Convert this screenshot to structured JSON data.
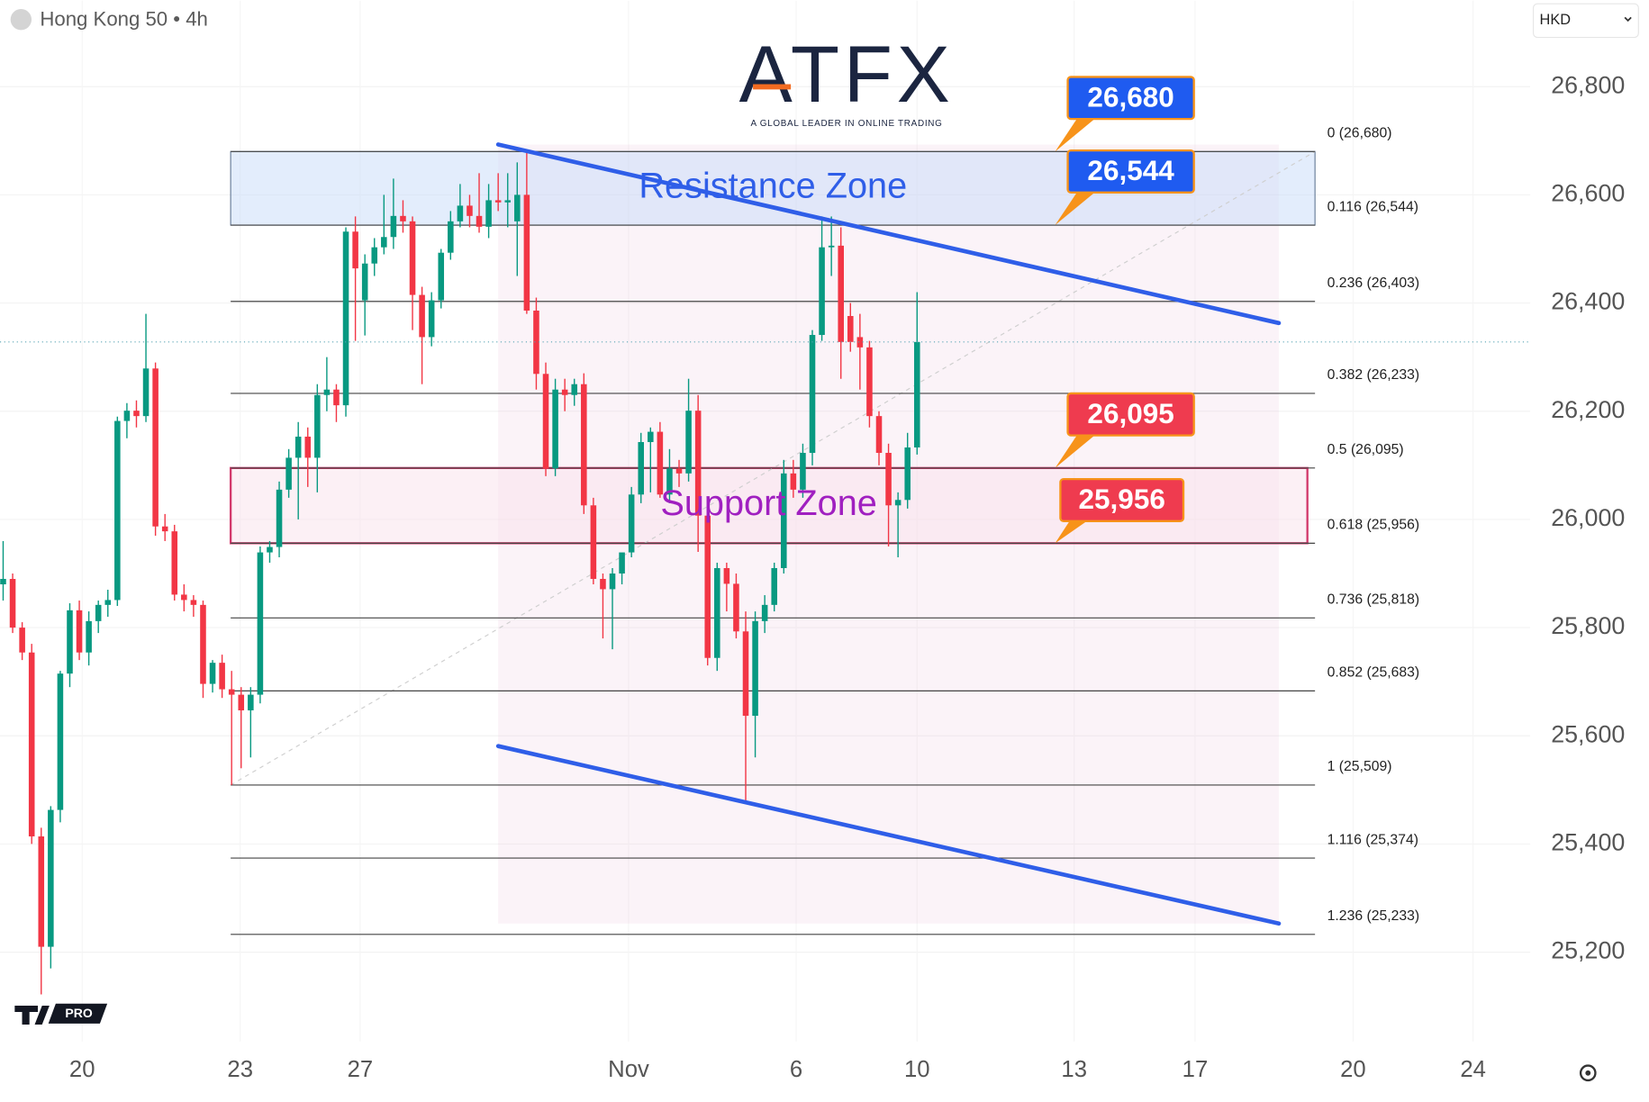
{
  "header": {
    "symbol": "Hong Kong 50 • 4h",
    "currency": "HKD"
  },
  "logo": {
    "brand": "ATFX",
    "tagline": "A GLOBAL LEADER IN ONLINE TRADING"
  },
  "badge": "PRO",
  "chart_data": {
    "type": "candlestick",
    "up_color": "#089981",
    "down_color": "#f23645",
    "candles": [
      [
        25880,
        25960,
        25850,
        25890
      ],
      [
        25890,
        25900,
        25790,
        25800
      ],
      [
        25800,
        25810,
        25740,
        25754
      ],
      [
        25754,
        25770,
        25400,
        25414
      ],
      [
        25414,
        25430,
        25122,
        25210
      ],
      [
        25210,
        25470,
        25170,
        25463
      ],
      [
        25463,
        25720,
        25440,
        25715
      ],
      [
        25715,
        25845,
        25690,
        25832
      ],
      [
        25832,
        25850,
        25740,
        25754
      ],
      [
        25754,
        25830,
        25730,
        25812
      ],
      [
        25812,
        25850,
        25790,
        25842
      ],
      [
        25842,
        25870,
        25820,
        25851
      ],
      [
        25851,
        26190,
        25840,
        26182
      ],
      [
        26182,
        26215,
        26150,
        26201
      ],
      [
        26201,
        26220,
        26170,
        26191
      ],
      [
        26191,
        26380,
        26180,
        26279
      ],
      [
        26279,
        26290,
        25970,
        25987
      ],
      [
        25987,
        26010,
        25960,
        25978
      ],
      [
        25978,
        25990,
        25850,
        25861
      ],
      [
        25861,
        25880,
        25830,
        25851
      ],
      [
        25851,
        25860,
        25820,
        25842
      ],
      [
        25842,
        25850,
        25670,
        25696
      ],
      [
        25696,
        25740,
        25680,
        25735
      ],
      [
        25735,
        25750,
        25670,
        25686
      ],
      [
        25686,
        25720,
        25509,
        25676
      ],
      [
        25676,
        25690,
        25540,
        25647
      ],
      [
        25647,
        25690,
        25560,
        25676
      ],
      [
        25676,
        25950,
        25660,
        25939
      ],
      [
        25939,
        25960,
        25920,
        25949
      ],
      [
        25949,
        26070,
        25930,
        26055
      ],
      [
        26055,
        26130,
        26040,
        26114
      ],
      [
        26114,
        26180,
        26000,
        26153
      ],
      [
        26153,
        26170,
        26060,
        26114
      ],
      [
        26114,
        26250,
        26050,
        26230
      ],
      [
        26230,
        26300,
        26200,
        26240
      ],
      [
        26240,
        26250,
        26180,
        26211
      ],
      [
        26211,
        26540,
        26190,
        26532
      ],
      [
        26532,
        26560,
        26330,
        26464
      ],
      [
        26405,
        26490,
        26340,
        26473
      ],
      [
        26473,
        26520,
        26450,
        26503
      ],
      [
        26503,
        26600,
        26490,
        26522
      ],
      [
        26522,
        26630,
        26500,
        26561
      ],
      [
        26561,
        26590,
        26530,
        26551
      ],
      [
        26551,
        26560,
        26350,
        26415
      ],
      [
        26415,
        26430,
        26250,
        26337
      ],
      [
        26337,
        26420,
        26320,
        26405
      ],
      [
        26405,
        26500,
        26390,
        26493
      ],
      [
        26493,
        26570,
        26480,
        26551
      ],
      [
        26551,
        26620,
        26540,
        26580
      ],
      [
        26580,
        26600,
        26540,
        26561
      ],
      [
        26561,
        26640,
        26530,
        26541
      ],
      [
        26541,
        26620,
        26520,
        26590
      ],
      [
        26590,
        26640,
        26570,
        26586
      ],
      [
        26586,
        26640,
        26540,
        26590
      ],
      [
        26551,
        26660,
        26450,
        26600
      ],
      [
        26600,
        26680,
        26380,
        26386
      ],
      [
        26386,
        26410,
        26240,
        26269
      ],
      [
        26269,
        26290,
        26080,
        26094
      ],
      [
        26094,
        26260,
        26080,
        26240
      ],
      [
        26240,
        26260,
        26200,
        26230
      ],
      [
        26230,
        26260,
        26210,
        26250
      ],
      [
        26250,
        26270,
        26010,
        26026
      ],
      [
        26026,
        26040,
        25880,
        25890
      ],
      [
        25890,
        25900,
        25780,
        25871
      ],
      [
        25871,
        25910,
        25760,
        25900
      ],
      [
        25900,
        25930,
        25880,
        25939
      ],
      [
        25939,
        26060,
        25930,
        26046
      ],
      [
        26046,
        26160,
        26030,
        26143
      ],
      [
        26143,
        26170,
        26050,
        26162
      ],
      [
        26162,
        26180,
        26040,
        26046
      ],
      [
        26046,
        26130,
        26030,
        26094
      ],
      [
        26094,
        26110,
        26060,
        26085
      ],
      [
        26085,
        26260,
        26070,
        26201
      ],
      [
        26201,
        26230,
        25940,
        26007
      ],
      [
        26007,
        26020,
        25730,
        25744
      ],
      [
        25744,
        25920,
        25720,
        25910
      ],
      [
        25910,
        25920,
        25830,
        25881
      ],
      [
        25881,
        25900,
        25780,
        25793
      ],
      [
        25793,
        25830,
        25478,
        25637
      ],
      [
        25637,
        25830,
        25560,
        25812
      ],
      [
        25812,
        25860,
        25790,
        25842
      ],
      [
        25842,
        25920,
        25830,
        25910
      ],
      [
        25910,
        26110,
        25900,
        26085
      ],
      [
        26085,
        26110,
        26040,
        26055
      ],
      [
        26055,
        26140,
        26040,
        26123
      ],
      [
        26123,
        26350,
        26100,
        26341
      ],
      [
        26341,
        26560,
        26330,
        26503
      ],
      [
        26503,
        26560,
        26450,
        26506
      ],
      [
        26506,
        26540,
        26260,
        26328
      ],
      [
        26376,
        26400,
        26310,
        26328
      ],
      [
        26337,
        26380,
        26240,
        26318
      ],
      [
        26318,
        26330,
        26170,
        26191
      ],
      [
        26191,
        26200,
        26100,
        26123
      ],
      [
        26123,
        26140,
        25950,
        26026
      ],
      [
        26026,
        26050,
        25930,
        26036
      ],
      [
        26036,
        26160,
        26020,
        26133
      ],
      [
        26133,
        26420,
        26120,
        26328
      ]
    ],
    "xlim": [
      -0.33,
      160.4
    ],
    "xticks": [
      {
        "value": 8.3,
        "label": "20"
      },
      {
        "value": 24.9,
        "label": "23"
      },
      {
        "value": 37.5,
        "label": "27"
      },
      {
        "value": 65.7,
        "label": "Nov"
      },
      {
        "value": 83.3,
        "label": "6"
      },
      {
        "value": 96.0,
        "label": "10"
      },
      {
        "value": 112.5,
        "label": "13"
      },
      {
        "value": 125.2,
        "label": "17"
      },
      {
        "value": 141.8,
        "label": "20"
      },
      {
        "value": 154.4,
        "label": "24"
      }
    ],
    "ylim": [
      25035,
      26959
    ],
    "yticks": [
      {
        "value": 25200,
        "label": "25,200"
      },
      {
        "value": 25400,
        "label": "25,400"
      },
      {
        "value": 25600,
        "label": "25,600"
      },
      {
        "value": 25800,
        "label": "25,800"
      },
      {
        "value": 26000,
        "label": "26,000"
      },
      {
        "value": 26200,
        "label": "26,200"
      },
      {
        "value": 26400,
        "label": "26,400"
      },
      {
        "value": 26600,
        "label": "26,600"
      },
      {
        "value": 26800,
        "label": "26,800"
      }
    ],
    "fib_x": [
      23.9,
      137.8
    ],
    "fib_levels": [
      {
        "value": 26680,
        "label": "0 (26,680)"
      },
      {
        "value": 26544,
        "label": "0.116 (26,544)"
      },
      {
        "value": 26403,
        "label": "0.236 (26,403)"
      },
      {
        "value": 26233,
        "label": "0.382 (26,233)"
      },
      {
        "value": 26095,
        "label": "0.5 (26,095)"
      },
      {
        "value": 25956,
        "label": "0.618 (25,956)"
      },
      {
        "value": 25818,
        "label": "0.736 (25,818)"
      },
      {
        "value": 25683,
        "label": "0.852 (25,683)"
      },
      {
        "value": 25509,
        "label": "1 (25,509)"
      },
      {
        "value": 25374,
        "label": "1.116 (25,374)"
      },
      {
        "value": 25233,
        "label": "1.236 (25,233)"
      }
    ],
    "zones": [
      {
        "label": "Resistance Zone",
        "x": [
          23.9,
          137.8
        ],
        "y": [
          26544,
          26680
        ],
        "color": "#2f5ee8"
      },
      {
        "label": "Support Zone",
        "x": [
          23.9,
          137.0
        ],
        "y": [
          25956,
          26095
        ],
        "color": "#a020c0"
      }
    ],
    "channel": {
      "color": "#2f5ee8",
      "upper": {
        "x": [
          52.0,
          134.0
        ],
        "y": [
          26693,
          26363
        ]
      },
      "lower": {
        "x": [
          52.0,
          134.0
        ],
        "y": [
          25581,
          25253
        ]
      }
    },
    "callouts": [
      {
        "value": 26680,
        "label": "26,680",
        "x": 110.5,
        "color": "#1f5bf0"
      },
      {
        "value": 26544,
        "label": "26,544",
        "x": 110.5,
        "color": "#1f5bf0"
      },
      {
        "value": 26095,
        "label": "26,095",
        "x": 110.5,
        "color": "#ef3b4f"
      },
      {
        "value": 25956,
        "label": "25,956",
        "x": 110.5,
        "color": "#ef3b4f"
      }
    ]
  }
}
